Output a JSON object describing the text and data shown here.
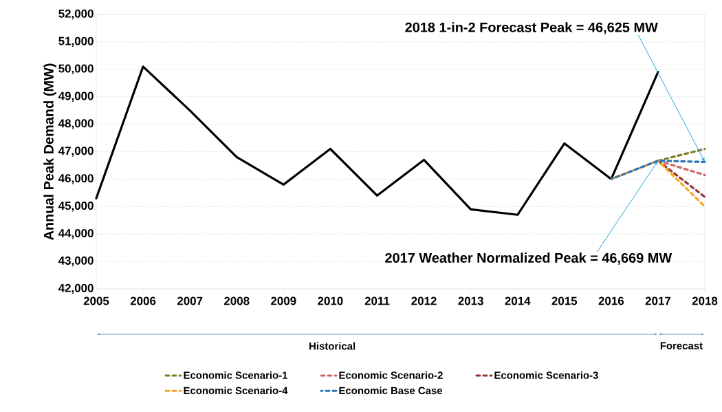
{
  "chart_data": {
    "type": "line",
    "ylabel": "Annual Peak Demand (MW)",
    "xlim": [
      2005,
      2018
    ],
    "xticks": [
      2005,
      2006,
      2007,
      2008,
      2009,
      2010,
      2011,
      2012,
      2013,
      2014,
      2015,
      2016,
      2017,
      2018
    ],
    "ylim": [
      42000,
      52000
    ],
    "yticks": [
      {
        "value": 42000,
        "label": "42,000"
      },
      {
        "value": 43000,
        "label": "43,000"
      },
      {
        "value": 44000,
        "label": "44,000"
      },
      {
        "value": 45000,
        "label": "45,000"
      },
      {
        "value": 46000,
        "label": "46,000"
      },
      {
        "value": 47000,
        "label": "47,000"
      },
      {
        "value": 48000,
        "label": "48,000"
      },
      {
        "value": 49000,
        "label": "49,000"
      },
      {
        "value": 50000,
        "label": "50,000"
      },
      {
        "value": 51000,
        "label": "51,000"
      },
      {
        "value": 52000,
        "label": "52,000"
      }
    ],
    "grid": "y",
    "legend": "bottom",
    "series": [
      {
        "color": "#000000",
        "line_style": "solid",
        "x": [
          2005,
          2006,
          2007,
          2008,
          2009,
          2010,
          2011,
          2012,
          2013,
          2014,
          2015,
          2016,
          2017
        ],
        "values": [
          45300,
          50100,
          48500,
          46800,
          45800,
          47100,
          45400,
          46700,
          44900,
          44700,
          47300,
          46000,
          49900
        ]
      },
      {
        "name": "Economic Scenario-1",
        "color": "#7f7f1f",
        "line_style": "dashed",
        "x": [
          2017,
          2018
        ],
        "values": [
          46669,
          47100
        ]
      },
      {
        "name": "Economic Scenario-2",
        "color": "#cc6666",
        "line_style": "dashed",
        "x": [
          2017,
          2018
        ],
        "values": [
          46669,
          46150
        ]
      },
      {
        "name": "Economic Scenario-3",
        "color": "#943634",
        "line_style": "dashed",
        "x": [
          2017,
          2018
        ],
        "values": [
          46669,
          45350
        ]
      },
      {
        "name": "Economic Scenario-4",
        "color": "#f5a623",
        "line_style": "dashed",
        "x": [
          2016,
          2017,
          2018
        ],
        "values": [
          46000,
          46669,
          45000
        ]
      },
      {
        "name": "Economic Base Case",
        "color": "#2e75b6",
        "line_style": "dashed",
        "x": [
          2016,
          2017,
          2018
        ],
        "values": [
          46000,
          46669,
          46625
        ]
      }
    ],
    "annotations": [
      {
        "text": "2018 1-in-2 Forecast Peak = 46,625 MW",
        "x": 2018,
        "y": 46625
      },
      {
        "text": "2017 Weather Normalized Peak = 46,669 MW",
        "x": 2017,
        "y": 46669
      },
      "Historical",
      "Forecast"
    ]
  }
}
